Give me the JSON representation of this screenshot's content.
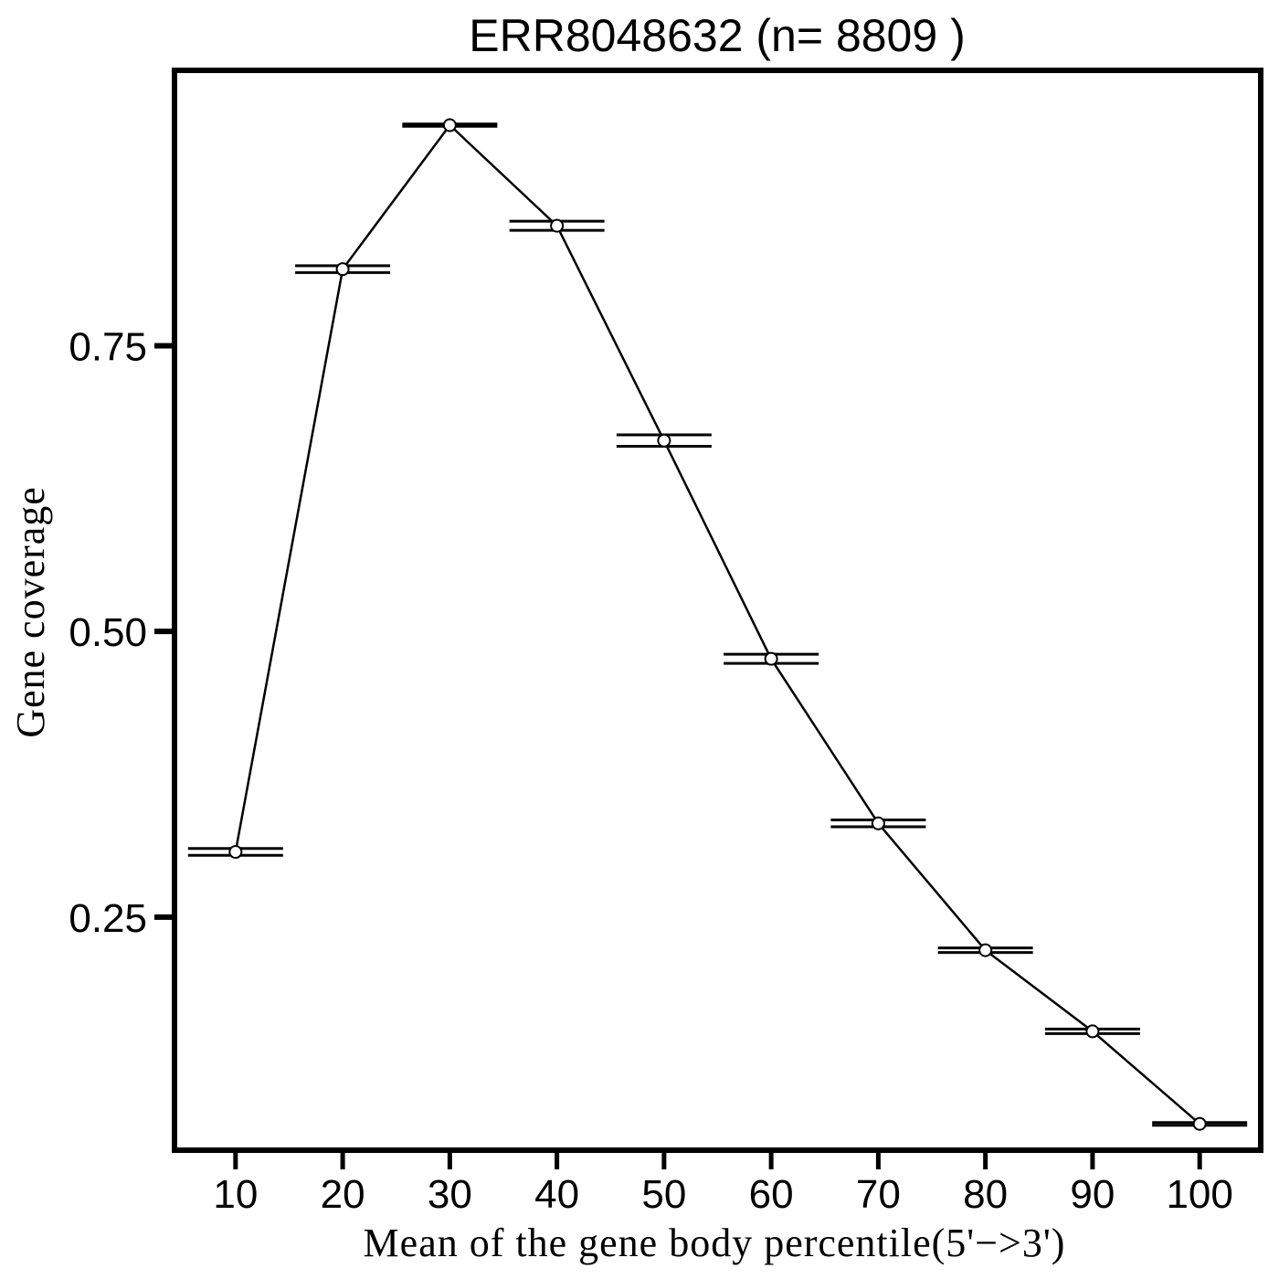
{
  "chart_data": {
    "type": "line",
    "title": "ERR8048632 (n= 8809 )",
    "xlabel": "Mean of the gene body percentile(5'−>3')",
    "ylabel": "Gene coverage",
    "x": [
      10,
      20,
      30,
      40,
      50,
      60,
      70,
      80,
      90,
      100
    ],
    "series": [
      {
        "values": [
          0.307,
          0.817,
          0.943,
          0.855,
          0.667,
          0.476,
          0.332,
          0.221,
          0.15,
          0.069
        ],
        "lower": [
          0.304,
          0.814,
          0.942,
          0.851,
          0.662,
          0.472,
          0.329,
          0.219,
          0.148,
          0.069
        ],
        "upper": [
          0.31,
          0.82,
          0.944,
          0.859,
          0.672,
          0.48,
          0.335,
          0.223,
          0.152,
          0.069
        ]
      }
    ],
    "xticks": [
      "10",
      "20",
      "30",
      "40",
      "50",
      "60",
      "70",
      "80",
      "90",
      "100"
    ],
    "yticks": [
      {
        "value": 0.25,
        "label": "0.25"
      },
      {
        "value": 0.5,
        "label": "0.50"
      },
      {
        "value": 0.75,
        "label": "0.75"
      }
    ],
    "xlim": [
      4.3,
      105.7
    ],
    "ylim": [
      0.046,
      0.991
    ],
    "grid": false,
    "colors": {
      "line": "#000000",
      "marker_fill": "#ffffff",
      "frame": "#000000"
    }
  }
}
